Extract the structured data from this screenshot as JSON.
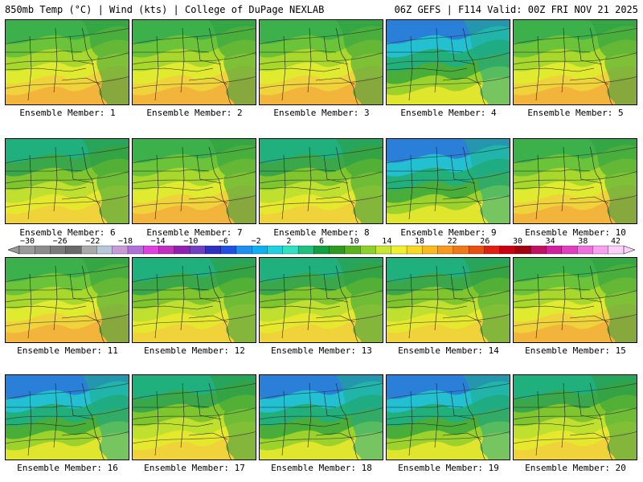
{
  "header": {
    "left": "850mb Temp (°C) | Wind (kts) | College of DuPage NEXLAB",
    "right": "06Z GEFS | F114 Valid: 00Z FRI NOV 21 2025"
  },
  "members": [
    {
      "label": "Ensemble Member: 1",
      "style": "warm"
    },
    {
      "label": "Ensemble Member: 2",
      "style": "warm"
    },
    {
      "label": "Ensemble Member: 3",
      "style": "warm"
    },
    {
      "label": "Ensemble Member: 4",
      "style": "cool"
    },
    {
      "label": "Ensemble Member: 5",
      "style": "warm"
    },
    {
      "label": "Ensemble Member: 6",
      "style": "mild"
    },
    {
      "label": "Ensemble Member: 7",
      "style": "warm"
    },
    {
      "label": "Ensemble Member: 8",
      "style": "mild"
    },
    {
      "label": "Ensemble Member: 9",
      "style": "cool"
    },
    {
      "label": "Ensemble Member: 10",
      "style": "warm"
    },
    {
      "label": "Ensemble Member: 11",
      "style": "warm"
    },
    {
      "label": "Ensemble Member: 12",
      "style": "mild"
    },
    {
      "label": "Ensemble Member: 13",
      "style": "mild"
    },
    {
      "label": "Ensemble Member: 14",
      "style": "mild"
    },
    {
      "label": "Ensemble Member: 15",
      "style": "warm"
    },
    {
      "label": "Ensemble Member: 16",
      "style": "cool"
    },
    {
      "label": "Ensemble Member: 17",
      "style": "mild"
    },
    {
      "label": "Ensemble Member: 18",
      "style": "cool"
    },
    {
      "label": "Ensemble Member: 19",
      "style": "cool"
    },
    {
      "label": "Ensemble Member: 20",
      "style": "mild"
    }
  ],
  "colorbar": {
    "labels": [
      "−30",
      "−26",
      "−22",
      "−18",
      "−14",
      "−10",
      "−6",
      "−2",
      "2",
      "6",
      "10",
      "14",
      "18",
      "22",
      "26",
      "30",
      "34",
      "38",
      "42"
    ],
    "colors": [
      "#9a9a9a",
      "#8c8c8c",
      "#7a7a7a",
      "#6a6a6a",
      "#a9a9a9",
      "#b8c8d8",
      "#c89ad8",
      "#b070d8",
      "#e040e0",
      "#c030c0",
      "#9020b0",
      "#7040c0",
      "#3030c0",
      "#2050e0",
      "#2090f0",
      "#10b0f0",
      "#20d0e0",
      "#30e0c0",
      "#20c080",
      "#10a040",
      "#2f9a1f",
      "#5ab21e",
      "#8fcf2a",
      "#c8e632",
      "#f0f030",
      "#f8d820",
      "#f8b820",
      "#f89820",
      "#f07818",
      "#e85010",
      "#e02010",
      "#c80010",
      "#a00010",
      "#c01060",
      "#d020a0",
      "#e040c0",
      "#f070e0",
      "#f8a0f0",
      "#fcd0f8"
    ]
  }
}
